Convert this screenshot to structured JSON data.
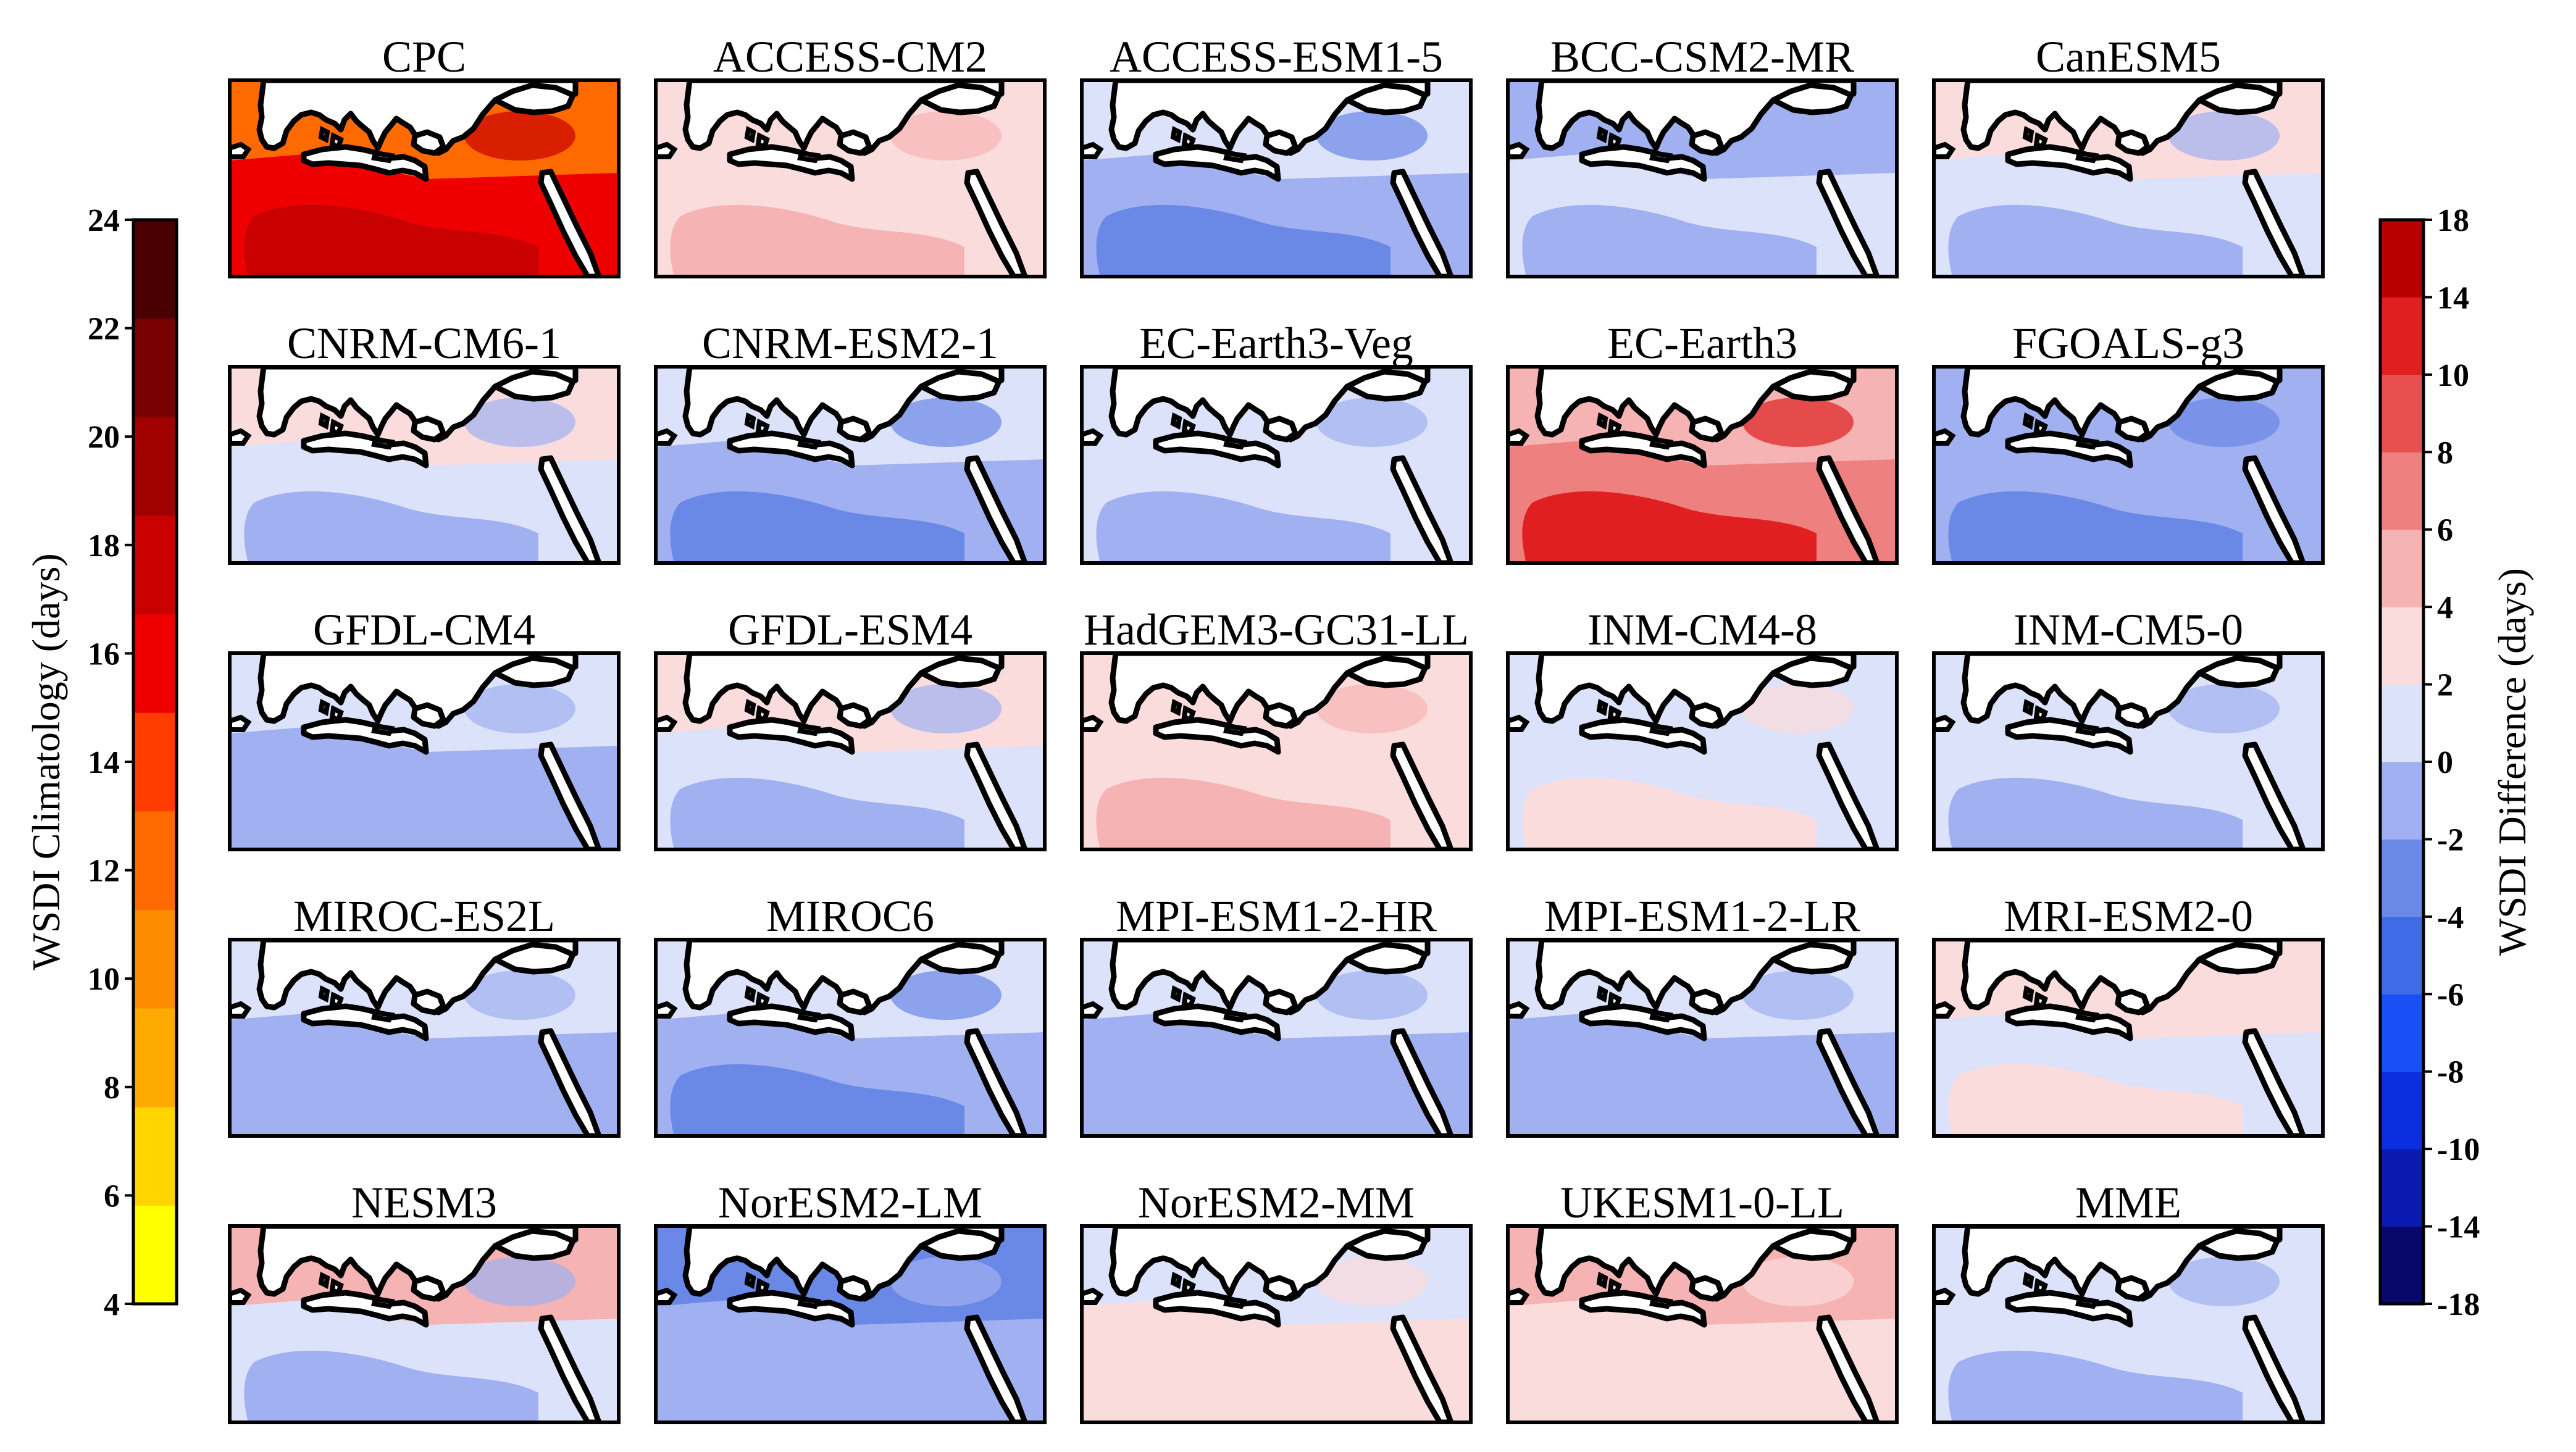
{
  "figure": {
    "left_colorbar": {
      "label": "WSDI Climatology (days)",
      "ticks": [
        "4",
        "6",
        "8",
        "10",
        "12",
        "14",
        "16",
        "18",
        "20",
        "22",
        "24"
      ],
      "colors": [
        "#ffff00",
        "#ffd400",
        "#ffaa00",
        "#ff8c00",
        "#ff6a00",
        "#ff3c00",
        "#ee0000",
        "#c80000",
        "#a00000",
        "#780000",
        "#4a0000"
      ]
    },
    "right_colorbar": {
      "label": "WSDI Difference (days)",
      "ticks": [
        "-18",
        "-14",
        "-10",
        "-8",
        "-6",
        "-4",
        "-2",
        "0",
        "2",
        "4",
        "6",
        "8",
        "10",
        "14",
        "18"
      ],
      "colors": [
        "#08086b",
        "#0a1ab0",
        "#0b2ee0",
        "#1a4ff5",
        "#3f6ae8",
        "#6a88e6",
        "#a0b0f0",
        "#dde2fb",
        "#fbdcdc",
        "#f6b3b3",
        "#ef8080",
        "#e84f4f",
        "#e02020",
        "#b80000"
      ]
    }
  },
  "panels": [
    {
      "title": "CPC",
      "kind": "climatology",
      "north": "#ff6a00",
      "south": "#ee0000",
      "hot": "#c80000"
    },
    {
      "title": "ACCESS-CM2",
      "kind": "difference",
      "north": "#fbdcdc",
      "south": "#fbdcdc",
      "hot": "#f6b3b3"
    },
    {
      "title": "ACCESS-ESM1-5",
      "kind": "difference",
      "north": "#dde2fb",
      "south": "#a0b0f0",
      "hot": "#6a88e6"
    },
    {
      "title": "BCC-CSM2-MR",
      "kind": "difference",
      "north": "#a0b0f0",
      "south": "#dde2fb",
      "hot": "#a0b0f0"
    },
    {
      "title": "CanESM5",
      "kind": "difference",
      "north": "#fbdcdc",
      "south": "#dde2fb",
      "hot": "#a0b0f0"
    },
    {
      "title": "CNRM-CM6-1",
      "kind": "difference",
      "north": "#fbdcdc",
      "south": "#dde2fb",
      "hot": "#a0b0f0"
    },
    {
      "title": "CNRM-ESM2-1",
      "kind": "difference",
      "north": "#dde2fb",
      "south": "#a0b0f0",
      "hot": "#6a88e6"
    },
    {
      "title": "EC-Earth3-Veg",
      "kind": "difference",
      "north": "#dde2fb",
      "south": "#dde2fb",
      "hot": "#a0b0f0"
    },
    {
      "title": "EC-Earth3",
      "kind": "difference",
      "north": "#f6b3b3",
      "south": "#ef8080",
      "hot": "#e02020"
    },
    {
      "title": "FGOALS-g3",
      "kind": "difference",
      "north": "#a0b0f0",
      "south": "#a0b0f0",
      "hot": "#6a88e6"
    },
    {
      "title": "GFDL-CM4",
      "kind": "difference",
      "north": "#dde2fb",
      "south": "#a0b0f0",
      "hot": "#a0b0f0"
    },
    {
      "title": "GFDL-ESM4",
      "kind": "difference",
      "north": "#fbdcdc",
      "south": "#dde2fb",
      "hot": "#a0b0f0"
    },
    {
      "title": "HadGEM3-GC31-LL",
      "kind": "difference",
      "north": "#fbdcdc",
      "south": "#fbdcdc",
      "hot": "#f6b3b3"
    },
    {
      "title": "INM-CM4-8",
      "kind": "difference",
      "north": "#dde2fb",
      "south": "#dde2fb",
      "hot": "#fbdcdc"
    },
    {
      "title": "INM-CM5-0",
      "kind": "difference",
      "north": "#dde2fb",
      "south": "#dde2fb",
      "hot": "#a0b0f0"
    },
    {
      "title": "MIROC-ES2L",
      "kind": "difference",
      "north": "#dde2fb",
      "south": "#a0b0f0",
      "hot": "#a0b0f0"
    },
    {
      "title": "MIROC6",
      "kind": "difference",
      "north": "#dde2fb",
      "south": "#a0b0f0",
      "hot": "#6a88e6"
    },
    {
      "title": "MPI-ESM1-2-HR",
      "kind": "difference",
      "north": "#dde2fb",
      "south": "#a0b0f0",
      "hot": "#a0b0f0"
    },
    {
      "title": "MPI-ESM1-2-LR",
      "kind": "difference",
      "north": "#dde2fb",
      "south": "#a0b0f0",
      "hot": "#a0b0f0"
    },
    {
      "title": "MRI-ESM2-0",
      "kind": "difference",
      "north": "#fbdcdc",
      "south": "#dde2fb",
      "hot": "#fbdcdc"
    },
    {
      "title": "NESM3",
      "kind": "difference",
      "north": "#f6b3b3",
      "south": "#dde2fb",
      "hot": "#a0b0f0"
    },
    {
      "title": "NorESM2-LM",
      "kind": "difference",
      "north": "#6a88e6",
      "south": "#a0b0f0",
      "hot": "#a0b0f0"
    },
    {
      "title": "NorESM2-MM",
      "kind": "difference",
      "north": "#dde2fb",
      "south": "#fbdcdc",
      "hot": "#fbdcdc"
    },
    {
      "title": "UKESM1-0-LL",
      "kind": "difference",
      "north": "#f6b3b3",
      "south": "#fbdcdc",
      "hot": "#fbdcdc"
    },
    {
      "title": "MME",
      "kind": "difference",
      "north": "#dde2fb",
      "south": "#dde2fb",
      "hot": "#a0b0f0"
    }
  ]
}
